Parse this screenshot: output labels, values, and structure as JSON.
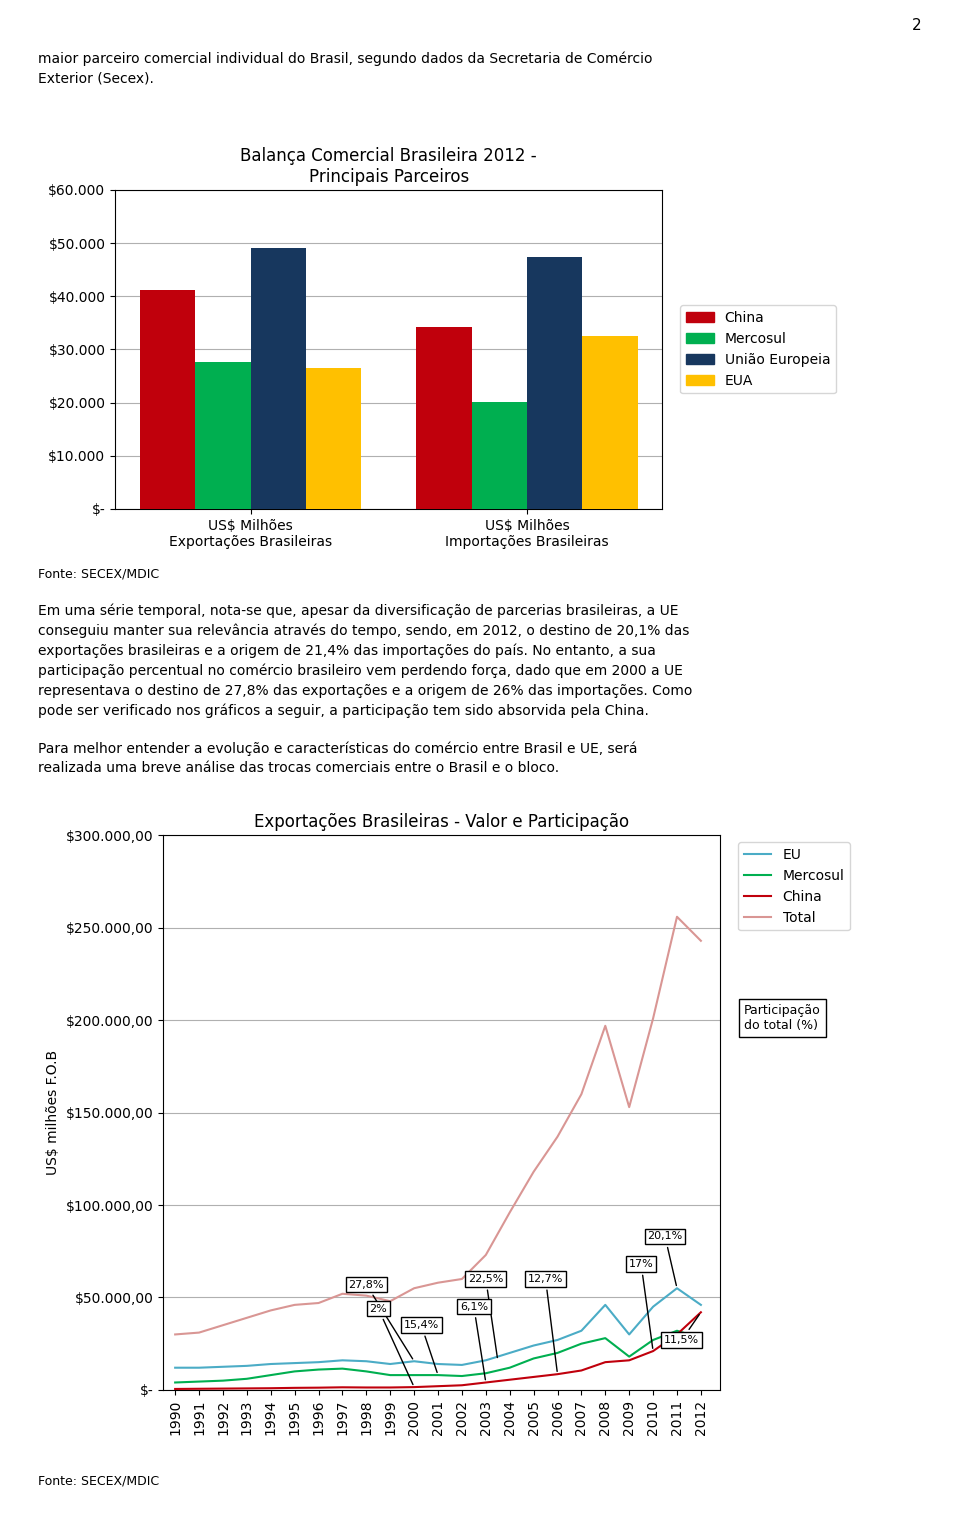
{
  "page_texts": {
    "page_number": "2",
    "top": "maior parceiro comercial individual do Brasil, segundo dados da Secretaria de Comércio\nExterior (Secex).",
    "middle": [
      "Em uma série temporal, nota-se que, apesar da diversificação de parcerias brasileiras, a UE\nconseguiu manter sua relevância através do tempo, sendo, em 2012, o destino de 20,1% das\nexportações brasileiras e a origem de 21,4% das importações do país. No entanto, a sua\nparticipação percentual no comércio brasileiro vem perdendo força, dado que em 2000 a UE\nrepresentava o destino de 27,8% das exportações e a origem de 26% das importações. Como\npode ser verificado nos gráficos a seguir, a participação tem sido absorvida pela China.",
      "Para melhor entender a evolução e características do comércio entre Brasil e UE, será\nrealizada uma breve análise das trocas comerciais entre o Brasil e o bloco."
    ]
  },
  "chart_data": [
    {
      "type": "bar",
      "title": "Balança Comercial Brasileira 2012 -\nPrincipais Parceiros",
      "categories": [
        "US$ Milhões\nExportações Brasileiras",
        "US$ Milhões\nImportações Brasileiras"
      ],
      "series": [
        {
          "name": "China",
          "color": "#C0000C",
          "values": [
            41226,
            34245
          ]
        },
        {
          "name": "Mercosul",
          "color": "#00AF50",
          "values": [
            27666,
            20136
          ]
        },
        {
          "name": "União Europeia",
          "color": "#17375E",
          "values": [
            49034,
            47399
          ]
        },
        {
          "name": "EUA",
          "color": "#FFC000",
          "values": [
            26545,
            32440
          ]
        }
      ],
      "ylim": [
        0,
        60000
      ],
      "yticks": [
        {
          "value": 0,
          "label": "$-"
        },
        {
          "value": 10000,
          "label": "$10.000"
        },
        {
          "value": 20000,
          "label": "$20.000"
        },
        {
          "value": 30000,
          "label": "$30.000"
        },
        {
          "value": 40000,
          "label": "$40.000"
        },
        {
          "value": 50000,
          "label": "$50.000"
        },
        {
          "value": 60000,
          "label": "$60.000"
        }
      ],
      "grid": true,
      "legend": "right",
      "source": "Fonte: SECEX/MDIC"
    },
    {
      "type": "line",
      "title": "Exportações Brasileiras - Valor e Participação",
      "ylabel": "US$ milhões F.O.B",
      "x": [
        1990,
        1991,
        1992,
        1993,
        1994,
        1995,
        1996,
        1997,
        1998,
        1999,
        2000,
        2001,
        2002,
        2003,
        2004,
        2005,
        2006,
        2007,
        2008,
        2009,
        2010,
        2011,
        2012
      ],
      "series": [
        {
          "name": "EU",
          "color": "#4BACC6",
          "values": [
            12000,
            12000,
            12500,
            13000,
            14000,
            14500,
            15000,
            16000,
            15500,
            14000,
            15500,
            14000,
            13500,
            16000,
            20000,
            24000,
            27000,
            32000,
            46000,
            30000,
            45000,
            55000,
            46000
          ]
        },
        {
          "name": "Mercosul",
          "color": "#00AF50",
          "values": [
            4000,
            4500,
            5000,
            6000,
            8000,
            10000,
            11000,
            11500,
            10000,
            8000,
            8000,
            8000,
            7500,
            9000,
            12000,
            17000,
            20000,
            25000,
            28000,
            18000,
            27000,
            32000,
            28000
          ]
        },
        {
          "name": "China",
          "color": "#C0000C",
          "values": [
            500,
            600,
            700,
            800,
            900,
            1100,
            1200,
            1400,
            1300,
            1300,
            1500,
            2000,
            2500,
            4000,
            5500,
            7000,
            8500,
            10500,
            15000,
            16000,
            21000,
            30000,
            42000
          ]
        },
        {
          "name": "Total",
          "color": "#D99694",
          "values": [
            30000,
            31000,
            35000,
            39000,
            43000,
            46000,
            47000,
            52000,
            51000,
            48000,
            55000,
            58000,
            60000,
            73000,
            96000,
            118000,
            137000,
            160000,
            197000,
            153000,
            201000,
            256000,
            243000
          ]
        }
      ],
      "xlim": [
        1989.5,
        2012.8
      ],
      "xticks": [
        1990,
        1991,
        1992,
        1993,
        1994,
        1995,
        1996,
        1997,
        1998,
        1999,
        2000,
        2001,
        2002,
        2003,
        2004,
        2005,
        2006,
        2007,
        2008,
        2009,
        2010,
        2011,
        2012
      ],
      "ylim": [
        0,
        300000
      ],
      "yticks": [
        {
          "value": 0,
          "label": "$-"
        },
        {
          "value": 50000,
          "label": "$50.000,00"
        },
        {
          "value": 100000,
          "label": "$100.000,00"
        },
        {
          "value": 150000,
          "label": "$150.000,00"
        },
        {
          "value": 200000,
          "label": "$200.000,00"
        },
        {
          "value": 250000,
          "label": "$250.000,00"
        },
        {
          "value": 300000,
          "label": "$300.000,00"
        }
      ],
      "grid": true,
      "legend": "upper right",
      "note": "Participação\ndo total (%)",
      "annotations": [
        {
          "text": "27,8%",
          "x": 2000,
          "y": 15500,
          "text_x": 1998.0,
          "text_y": 57000
        },
        {
          "text": "2%",
          "x": 2000,
          "y": 1500,
          "text_x": 1998.5,
          "text_y": 44000
        },
        {
          "text": "15,4%",
          "x": 2001,
          "y": 8000,
          "text_x": 2000.3,
          "text_y": 35000
        },
        {
          "text": "22,5%",
          "x": 2003.5,
          "y": 16000,
          "text_x": 2003.0,
          "text_y": 60000
        },
        {
          "text": "6,1%",
          "x": 2003,
          "y": 4000,
          "text_x": 2002.5,
          "text_y": 45000
        },
        {
          "text": "12,7%",
          "x": 2006,
          "y": 8500,
          "text_x": 2005.5,
          "text_y": 60000
        },
        {
          "text": "20,1%",
          "x": 2011,
          "y": 55000,
          "text_x": 2010.5,
          "text_y": 83000
        },
        {
          "text": "17%",
          "x": 2010,
          "y": 21000,
          "text_x": 2009.5,
          "text_y": 68000
        },
        {
          "text": "11,5%",
          "x": 2012,
          "y": 42000,
          "text_x": 2011.2,
          "text_y": 27000
        }
      ],
      "source": "Fonte: SECEX/MDIC"
    }
  ]
}
